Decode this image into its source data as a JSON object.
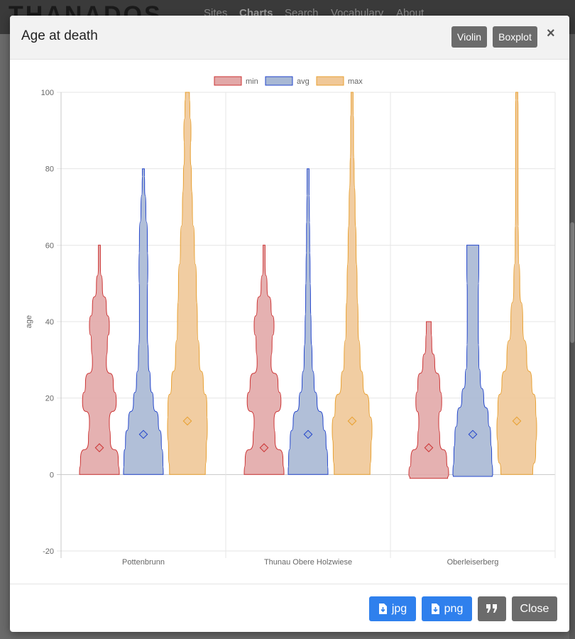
{
  "nav": {
    "logo": "THANADOS",
    "items": [
      "Sites",
      "Charts",
      "Search",
      "Vocabulary",
      "About"
    ]
  },
  "modal": {
    "title": "Age at death",
    "buttons": {
      "violin": "Violin",
      "boxplot": "Boxplot",
      "close_x": "×"
    }
  },
  "footer": {
    "jpg": "jpg",
    "png": "png",
    "close": "Close"
  },
  "colors": {
    "min_fill": "#e2a8a8",
    "min_line": "#cc3333",
    "avg_fill": "#a8b8d4",
    "avg_line": "#2244cc",
    "max_fill": "#f0c898",
    "max_line": "#e8a030",
    "button_blue": "#2f80ed",
    "button_grey": "#6b6b6b"
  },
  "chart_data": {
    "type": "violin",
    "ylabel": "age",
    "ylim": [
      -20,
      100
    ],
    "yticks": [
      -20,
      0,
      20,
      40,
      60,
      80,
      100
    ],
    "categories": [
      "Pottenbrunn",
      "Thunau Obere Holzwiese",
      "Oberleiserberg"
    ],
    "legend_position": "top",
    "grid": true,
    "series": [
      {
        "name": "min",
        "ranges": [
          [
            0,
            60
          ],
          [
            0,
            60
          ],
          [
            -1,
            40
          ]
        ],
        "means": [
          7,
          7,
          7
        ],
        "profiles": [
          [
            [
              0,
              1.0
            ],
            [
              4,
              0.95
            ],
            [
              9,
              0.55
            ],
            [
              14,
              0.5
            ],
            [
              19,
              0.85
            ],
            [
              24,
              0.7
            ],
            [
              29,
              0.35
            ],
            [
              34,
              0.4
            ],
            [
              39,
              0.5
            ],
            [
              44,
              0.35
            ],
            [
              49,
              0.15
            ],
            [
              55,
              0.05
            ],
            [
              60,
              0.05
            ]
          ],
          [
            [
              0,
              1.0
            ],
            [
              4,
              0.95
            ],
            [
              9,
              0.55
            ],
            [
              14,
              0.5
            ],
            [
              19,
              0.85
            ],
            [
              24,
              0.7
            ],
            [
              29,
              0.35
            ],
            [
              34,
              0.4
            ],
            [
              39,
              0.5
            ],
            [
              44,
              0.35
            ],
            [
              49,
              0.15
            ],
            [
              55,
              0.05
            ],
            [
              60,
              0.05
            ]
          ],
          [
            [
              -1,
              0.95
            ],
            [
              0,
              1.0
            ],
            [
              4,
              0.9
            ],
            [
              9,
              0.55
            ],
            [
              14,
              0.5
            ],
            [
              19,
              0.65
            ],
            [
              24,
              0.55
            ],
            [
              29,
              0.3
            ],
            [
              34,
              0.15
            ],
            [
              39,
              0.12
            ],
            [
              40,
              0.12
            ]
          ]
        ]
      },
      {
        "name": "avg",
        "ranges": [
          [
            0,
            80
          ],
          [
            0,
            80
          ],
          [
            -0.5,
            60
          ]
        ],
        "means": [
          10.5,
          10.5,
          10.5
        ],
        "profiles": [
          [
            [
              0,
              1.0
            ],
            [
              4,
              0.98
            ],
            [
              9,
              0.9
            ],
            [
              14,
              0.75
            ],
            [
              19,
              0.5
            ],
            [
              24,
              0.35
            ],
            [
              30,
              0.25
            ],
            [
              38,
              0.2
            ],
            [
              46,
              0.2
            ],
            [
              54,
              0.22
            ],
            [
              62,
              0.2
            ],
            [
              70,
              0.12
            ],
            [
              76,
              0.06
            ],
            [
              80,
              0.05
            ]
          ],
          [
            [
              0,
              1.0
            ],
            [
              4,
              0.98
            ],
            [
              9,
              0.9
            ],
            [
              14,
              0.75
            ],
            [
              19,
              0.45
            ],
            [
              24,
              0.3
            ],
            [
              30,
              0.2
            ],
            [
              38,
              0.15
            ],
            [
              46,
              0.12
            ],
            [
              54,
              0.1
            ],
            [
              62,
              0.08
            ],
            [
              70,
              0.06
            ],
            [
              76,
              0.05
            ],
            [
              80,
              0.05
            ]
          ],
          [
            [
              -0.5,
              0.98
            ],
            [
              0,
              1.0
            ],
            [
              5,
              0.95
            ],
            [
              10,
              0.9
            ],
            [
              15,
              0.78
            ],
            [
              20,
              0.55
            ],
            [
              25,
              0.38
            ],
            [
              30,
              0.3
            ],
            [
              38,
              0.28
            ],
            [
              46,
              0.28
            ],
            [
              54,
              0.3
            ],
            [
              58,
              0.3
            ],
            [
              60,
              0.3
            ]
          ]
        ]
      },
      {
        "name": "max",
        "ranges": [
          [
            0,
            100
          ],
          [
            0,
            100
          ],
          [
            0,
            100
          ]
        ],
        "means": [
          14,
          14,
          14
        ],
        "profiles": [
          [
            [
              0,
              0.9
            ],
            [
              6,
              0.95
            ],
            [
              12,
              1.0
            ],
            [
              18,
              0.98
            ],
            [
              24,
              0.8
            ],
            [
              30,
              0.6
            ],
            [
              40,
              0.5
            ],
            [
              50,
              0.45
            ],
            [
              60,
              0.35
            ],
            [
              70,
              0.25
            ],
            [
              78,
              0.2
            ],
            [
              84,
              0.15
            ],
            [
              90,
              0.18
            ],
            [
              96,
              0.12
            ],
            [
              100,
              0.1
            ]
          ],
          [
            [
              0,
              0.9
            ],
            [
              6,
              0.95
            ],
            [
              12,
              1.0
            ],
            [
              18,
              0.85
            ],
            [
              24,
              0.55
            ],
            [
              30,
              0.4
            ],
            [
              40,
              0.3
            ],
            [
              50,
              0.25
            ],
            [
              60,
              0.2
            ],
            [
              70,
              0.15
            ],
            [
              80,
              0.1
            ],
            [
              86,
              0.07
            ],
            [
              92,
              0.07
            ],
            [
              96,
              0.05
            ],
            [
              100,
              0.05
            ]
          ],
          [
            [
              0,
              0.8
            ],
            [
              6,
              0.95
            ],
            [
              12,
              1.0
            ],
            [
              18,
              0.95
            ],
            [
              24,
              0.75
            ],
            [
              30,
              0.5
            ],
            [
              40,
              0.3
            ],
            [
              50,
              0.15
            ],
            [
              60,
              0.08
            ],
            [
              70,
              0.06
            ],
            [
              80,
              0.06
            ],
            [
              90,
              0.06
            ],
            [
              96,
              0.06
            ],
            [
              100,
              0.05
            ]
          ]
        ]
      }
    ]
  }
}
